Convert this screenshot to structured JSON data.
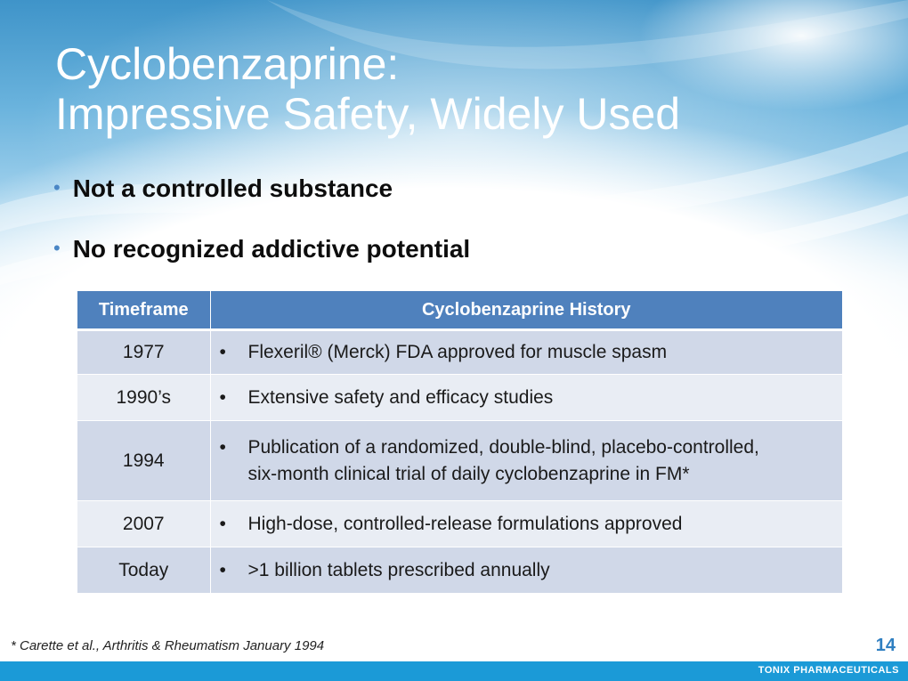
{
  "slide": {
    "title_line1": "Cyclobenzaprine:",
    "title_line2": "Impressive Safety, Widely Used",
    "bullets": [
      "Not a controlled substance",
      "No recognized addictive potential"
    ],
    "table": {
      "headers": [
        "Timeframe",
        "Cyclobenzaprine History"
      ],
      "rows": [
        {
          "timeframe": "1977",
          "history": "Flexeril® (Merck) FDA approved for muscle spasm"
        },
        {
          "timeframe": "1990’s",
          "history": "Extensive safety and efficacy studies"
        },
        {
          "timeframe": "1994",
          "history_line1": "Publication of a randomized, double-blind, placebo-controlled,",
          "history_line2": "six-month clinical trial of daily cyclobenzaprine in FM*"
        },
        {
          "timeframe": "2007",
          "history": "High-dose, controlled-release formulations approved"
        },
        {
          "timeframe": "Today",
          "history": ">1 billion tablets prescribed annually"
        }
      ]
    },
    "footnote": "* Carette et al., Arthritis & Rheumatism January 1994",
    "page_number": "14",
    "company": "TONIX PHARMACEUTICALS"
  },
  "colors": {
    "header_fill": "#4f81bd",
    "row_dark": "#d0d8e8",
    "row_light": "#e9edf4",
    "footer_bar": "#1b9ad7",
    "page_number": "#2f7fc1"
  }
}
